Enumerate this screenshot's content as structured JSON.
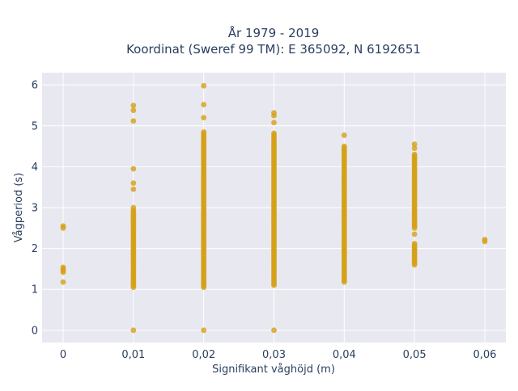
{
  "chart_data": {
    "type": "scatter",
    "title": "År 1979 - 2019",
    "subtitle": "Koordinat (Sweref 99 TM): E 365092, N 6192651",
    "xlabel": "Signifikant våghöjd (m)",
    "ylabel": "Vågperiod (s)",
    "x_ticks": [
      "0",
      "0,01",
      "0,02",
      "0,03",
      "0,04",
      "0,05",
      "0,06"
    ],
    "x_tick_values": [
      0,
      0.01,
      0.02,
      0.03,
      0.04,
      0.05,
      0.06
    ],
    "y_ticks": [
      "0",
      "1",
      "2",
      "3",
      "4",
      "5",
      "6"
    ],
    "y_tick_values": [
      0,
      1,
      2,
      3,
      4,
      5,
      6
    ],
    "xlim": [
      -0.003,
      0.063
    ],
    "ylim": [
      -0.3,
      6.3
    ],
    "grid": true,
    "marker_color": "#D4A017",
    "plot_bg": "#E8E8F0",
    "columns": [
      {
        "x": 0.0,
        "ranges": [
          [
            1.42,
            1.55
          ]
        ],
        "points": [
          1.18,
          2.5,
          2.55
        ]
      },
      {
        "x": 0.01,
        "ranges": [
          [
            1.05,
            2.95
          ]
        ],
        "points": [
          0.0,
          3.0,
          3.45,
          3.6,
          3.95,
          5.12,
          5.38,
          5.5
        ]
      },
      {
        "x": 0.02,
        "ranges": [
          [
            1.05,
            4.88
          ]
        ],
        "points": [
          0.0,
          5.2,
          5.52,
          5.98
        ]
      },
      {
        "x": 0.03,
        "ranges": [
          [
            1.1,
            4.85
          ]
        ],
        "points": [
          0.0,
          5.08,
          5.25,
          5.32
        ]
      },
      {
        "x": 0.04,
        "ranges": [
          [
            1.18,
            4.5
          ]
        ],
        "points": [
          4.77
        ]
      },
      {
        "x": 0.05,
        "ranges": [
          [
            1.6,
            2.15
          ],
          [
            2.5,
            4.3
          ]
        ],
        "points": [
          2.35,
          4.45,
          4.55
        ]
      },
      {
        "x": 0.06,
        "ranges": [],
        "points": [
          2.17,
          2.22
        ]
      }
    ]
  }
}
